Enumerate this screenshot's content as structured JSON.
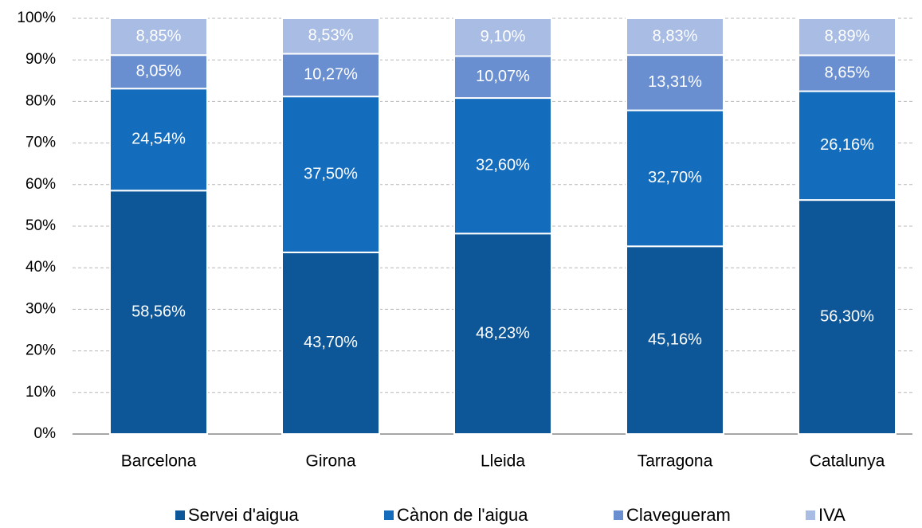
{
  "chart_data": {
    "type": "stacked-bar",
    "categories": [
      "Barcelona",
      "Girona",
      "Lleida",
      "Tarragona",
      "Catalunya"
    ],
    "series": [
      {
        "name": "Servei d'aigua",
        "color": "#0d5697",
        "values": [
          58.56,
          43.7,
          48.23,
          45.16,
          56.3
        ],
        "value_labels": [
          "58,56%",
          "43,70%",
          "48,23%",
          "45,16%",
          "56,30%"
        ]
      },
      {
        "name": "Cànon de l'aigua",
        "color": "#146cbd",
        "values": [
          24.54,
          37.5,
          32.6,
          32.7,
          26.16
        ],
        "value_labels": [
          "24,54%",
          "37,50%",
          "32,60%",
          "32,70%",
          "26,16%"
        ]
      },
      {
        "name": "Clavegueram",
        "color": "#6a8fd1",
        "values": [
          8.05,
          10.27,
          10.07,
          13.31,
          8.65
        ],
        "value_labels": [
          "8,05%",
          "10,27%",
          "10,07%",
          "13,31%",
          "8,65%"
        ]
      },
      {
        "name": "IVA",
        "color": "#a9bce3",
        "values": [
          8.85,
          8.53,
          9.1,
          8.83,
          8.89
        ],
        "value_labels": [
          "8,85%",
          "8,53%",
          "9,10%",
          "8,83%",
          "8,89%"
        ]
      }
    ],
    "ylim": [
      0,
      100
    ],
    "yticks": [
      {
        "value": 0,
        "label": "0%"
      },
      {
        "value": 10,
        "label": "10%"
      },
      {
        "value": 20,
        "label": "20%"
      },
      {
        "value": 30,
        "label": "30%"
      },
      {
        "value": 40,
        "label": "40%"
      },
      {
        "value": 50,
        "label": "50%"
      },
      {
        "value": 60,
        "label": "60%"
      },
      {
        "value": 70,
        "label": "70%"
      },
      {
        "value": 80,
        "label": "80%"
      },
      {
        "value": 90,
        "label": "90%"
      },
      {
        "value": 100,
        "label": "100%"
      }
    ],
    "grid": true,
    "legend": "bottom"
  }
}
